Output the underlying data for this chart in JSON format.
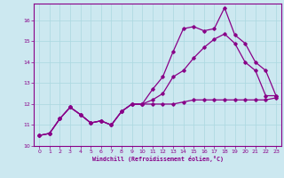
{
  "xlabel": "Windchill (Refroidissement éolien,°C)",
  "bg_color": "#cce8f0",
  "line_color": "#880088",
  "grid_color": "#aad8e0",
  "xlim": [
    -0.5,
    23.5
  ],
  "ylim": [
    10.0,
    16.8
  ],
  "yticks": [
    10,
    11,
    12,
    13,
    14,
    15,
    16
  ],
  "xticks": [
    0,
    1,
    2,
    3,
    4,
    5,
    6,
    7,
    8,
    9,
    10,
    11,
    12,
    13,
    14,
    15,
    16,
    17,
    18,
    19,
    20,
    21,
    22,
    23
  ],
  "line1_x": [
    0,
    1,
    2,
    3,
    4,
    5,
    6,
    7,
    8,
    9,
    10,
    11,
    12,
    13,
    14,
    15,
    16,
    17,
    18,
    19,
    20,
    21,
    22,
    23
  ],
  "line1_y": [
    10.5,
    10.6,
    11.3,
    11.85,
    11.5,
    11.1,
    11.2,
    11.0,
    11.65,
    12.0,
    12.0,
    12.0,
    12.0,
    12.0,
    12.1,
    12.2,
    12.2,
    12.2,
    12.2,
    12.2,
    12.2,
    12.2,
    12.2,
    12.3
  ],
  "line2_x": [
    0,
    1,
    2,
    3,
    4,
    5,
    6,
    7,
    8,
    9,
    10,
    11,
    12,
    13,
    14,
    15,
    16,
    17,
    18,
    19,
    20,
    21,
    22,
    23
  ],
  "line2_y": [
    10.5,
    10.6,
    11.3,
    11.85,
    11.5,
    11.1,
    11.2,
    11.0,
    11.65,
    12.0,
    12.0,
    12.7,
    13.3,
    14.5,
    15.6,
    15.7,
    15.5,
    15.6,
    16.6,
    15.3,
    14.9,
    14.0,
    13.6,
    12.4
  ],
  "line3_x": [
    0,
    1,
    2,
    3,
    4,
    5,
    6,
    7,
    8,
    9,
    10,
    11,
    12,
    13,
    14,
    15,
    16,
    17,
    18,
    19,
    20,
    21,
    22,
    23
  ],
  "line3_y": [
    10.5,
    10.6,
    11.3,
    11.85,
    11.5,
    11.1,
    11.2,
    11.0,
    11.65,
    12.0,
    12.0,
    12.2,
    12.5,
    13.3,
    13.6,
    14.2,
    14.7,
    15.1,
    15.35,
    14.9,
    14.0,
    13.6,
    12.4,
    12.4
  ]
}
